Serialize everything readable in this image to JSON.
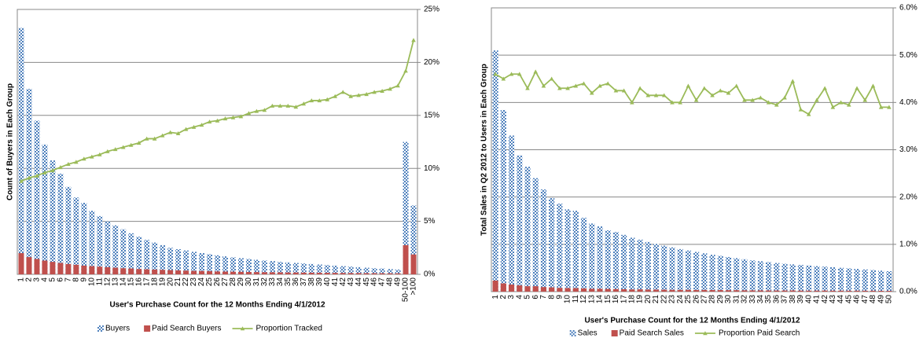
{
  "chart_data": [
    {
      "type": "combo",
      "y_label": "Count of Buyers in Each Group",
      "x_label": "User's Purchase Count for the 12 Months Ending 4/1/2012",
      "categories": [
        "1",
        "2",
        "3",
        "4",
        "5",
        "6",
        "7",
        "8",
        "9",
        "10",
        "11",
        "12",
        "13",
        "14",
        "15",
        "16",
        "17",
        "18",
        "19",
        "20",
        "21",
        "22",
        "23",
        "24",
        "25",
        "26",
        "27",
        "28",
        "29",
        "30",
        "31",
        "32",
        "33",
        "34",
        "35",
        "36",
        "37",
        "38",
        "39",
        "40",
        "41",
        "42",
        "43",
        "44",
        "45",
        "46",
        "47",
        "48",
        "49",
        "50-100",
        ">100"
      ],
      "series": [
        {
          "name": "Buyers",
          "type": "bar",
          "color": "#4f81bd",
          "values": [
            93,
            70,
            58,
            49,
            43,
            38,
            33,
            29,
            27,
            24,
            22,
            20,
            18.5,
            17,
            15.5,
            14.2,
            13,
            12,
            11,
            10,
            9.5,
            9,
            8.5,
            8,
            7.6,
            7.2,
            6.8,
            6.4,
            6.1,
            5.8,
            5.5,
            5.2,
            5,
            4.7,
            4.5,
            4.3,
            4.1,
            3.9,
            3.7,
            3.5,
            3.3,
            3.1,
            2.9,
            2.7,
            2.5,
            2.3,
            2.2,
            2.0,
            1.8,
            50,
            26
          ]
        },
        {
          "name": "Paid Search Buyers",
          "type": "bar",
          "color": "#c0504d",
          "values": [
            8,
            6.5,
            5.8,
            5.2,
            4.7,
            4.3,
            3.9,
            3.6,
            3.3,
            3.1,
            2.9,
            2.7,
            2.5,
            2.3,
            2.2,
            2.0,
            1.9,
            1.8,
            1.7,
            1.6,
            1.5,
            1.4,
            1.3,
            1.25,
            1.2,
            1.1,
            1.05,
            1.0,
            0.95,
            0.9,
            0.85,
            0.8,
            0.78,
            0.75,
            0.7,
            0.68,
            0.65,
            0.62,
            0.6,
            0.58,
            0.55,
            0.52,
            0.5,
            0.48,
            0.45,
            0.43,
            0.42,
            0.4,
            0.38,
            11,
            7.5
          ]
        },
        {
          "name": "Proportion Tracked",
          "type": "line",
          "axis": "y2",
          "color": "#9bbb59",
          "values": [
            8.8,
            9.1,
            9.3,
            9.6,
            9.8,
            10.1,
            10.4,
            10.6,
            10.9,
            11.1,
            11.3,
            11.6,
            11.8,
            12.0,
            12.2,
            12.4,
            12.8,
            12.8,
            13.1,
            13.4,
            13.3,
            13.7,
            13.9,
            14.1,
            14.4,
            14.5,
            14.7,
            14.8,
            14.9,
            15.2,
            15.4,
            15.5,
            15.9,
            15.9,
            15.9,
            15.8,
            16.1,
            16.4,
            16.4,
            16.5,
            16.8,
            17.2,
            16.8,
            16.9,
            17.0,
            17.2,
            17.3,
            17.5,
            17.8,
            19.2,
            22.1
          ]
        }
      ],
      "ylim": [
        0,
        100
      ],
      "y2lim": [
        0,
        25
      ],
      "y2ticks": [
        {
          "value": 0,
          "label": "0%"
        },
        {
          "value": 5,
          "label": "5%"
        },
        {
          "value": 10,
          "label": "10%"
        },
        {
          "value": 15,
          "label": "15%"
        },
        {
          "value": 20,
          "label": "20%"
        },
        {
          "value": 25,
          "label": "25%"
        }
      ],
      "grid": true,
      "legend": "bottom"
    },
    {
      "type": "combo",
      "y_label": "Total Sales in Q2 2012 to Users in Each Group",
      "x_label": "User's Purchase Count for the 12 Months Ending 4/1/2012",
      "categories": [
        "1",
        "2",
        "3",
        "4",
        "5",
        "6",
        "7",
        "8",
        "9",
        "10",
        "11",
        "12",
        "13",
        "14",
        "15",
        "16",
        "17",
        "18",
        "19",
        "20",
        "21",
        "22",
        "23",
        "24",
        "25",
        "26",
        "27",
        "28",
        "29",
        "30",
        "31",
        "32",
        "33",
        "34",
        "35",
        "36",
        "37",
        "38",
        "39",
        "40",
        "41",
        "42",
        "43",
        "44",
        "45",
        "46",
        "47",
        "48",
        "49",
        "50"
      ],
      "series": [
        {
          "name": "Sales",
          "type": "bar",
          "color": "#4f81bd",
          "values": [
            85,
            64,
            55,
            48,
            44,
            40,
            36,
            33,
            31,
            29,
            28.5,
            26,
            24,
            23,
            21.6,
            21,
            20,
            19,
            18.3,
            17.5,
            16.8,
            16.2,
            15.6,
            15,
            14.5,
            14,
            13.5,
            13,
            12.6,
            12.2,
            11.8,
            11.4,
            11,
            10.7,
            10.4,
            10.1,
            9.8,
            9.6,
            9.4,
            9.2,
            9,
            8.8,
            8.6,
            8.4,
            8.2,
            8,
            7.8,
            7.6,
            7.4,
            7.2
          ]
        },
        {
          "name": "Paid Search Sales",
          "type": "bar",
          "color": "#c0504d",
          "values": [
            3.9,
            2.9,
            2.5,
            2.2,
            1.9,
            1.9,
            1.6,
            1.5,
            1.3,
            1.25,
            1.24,
            1.14,
            1.0,
            1.0,
            0.95,
            0.89,
            0.85,
            0.76,
            0.79,
            0.73,
            0.7,
            0.67,
            0.62,
            0.6,
            0.63,
            0.57,
            0.58,
            0.55,
            0.54,
            0.51,
            0.51,
            0.46,
            0.45,
            0.44,
            0.42,
            0.4,
            0.4,
            0.43,
            0.36,
            0.35,
            0.36,
            0.38,
            0.34,
            0.34,
            0.32,
            0.34,
            0.32,
            0.33,
            0.29,
            0.28
          ]
        },
        {
          "name": "Proportion Paid Search",
          "type": "line",
          "axis": "y2",
          "color": "#9bbb59",
          "values": [
            4.6,
            4.5,
            4.6,
            4.6,
            4.3,
            4.65,
            4.35,
            4.5,
            4.3,
            4.3,
            4.35,
            4.4,
            4.2,
            4.35,
            4.4,
            4.25,
            4.25,
            4.0,
            4.3,
            4.15,
            4.15,
            4.15,
            4.0,
            4.0,
            4.35,
            4.05,
            4.3,
            4.15,
            4.25,
            4.2,
            4.35,
            4.05,
            4.05,
            4.1,
            4.0,
            3.95,
            4.1,
            4.45,
            3.85,
            3.75,
            4.05,
            4.3,
            3.9,
            4.0,
            3.95,
            4.3,
            4.05,
            4.35,
            3.9,
            3.9
          ]
        }
      ],
      "ylim": [
        0,
        100
      ],
      "y2lim": [
        0,
        6
      ],
      "y2ticks": [
        {
          "value": 0,
          "label": "0.0%"
        },
        {
          "value": 1,
          "label": "1.0%"
        },
        {
          "value": 2,
          "label": "2.0%"
        },
        {
          "value": 3,
          "label": "3.0%"
        },
        {
          "value": 4,
          "label": "4.0%"
        },
        {
          "value": 5,
          "label": "5.0%"
        },
        {
          "value": 6,
          "label": "6.0%"
        }
      ],
      "grid": true,
      "legend": "bottom"
    }
  ]
}
